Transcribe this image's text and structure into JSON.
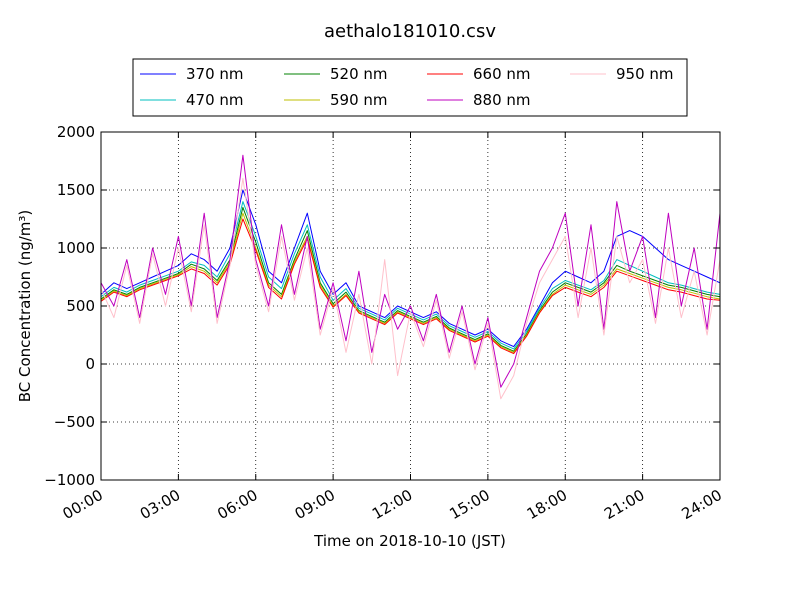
{
  "chart_data": {
    "type": "line",
    "title": "aethalo181010.csv",
    "xlabel": "Time on 2018-10-10 (JST)",
    "ylabel": "BC Concentration (ng/m³)",
    "x_unit": "hours",
    "xlim": [
      0,
      24
    ],
    "ylim": [
      -1000,
      2000
    ],
    "xticks": [
      0,
      3,
      6,
      9,
      12,
      15,
      18,
      21,
      24
    ],
    "xtick_labels": [
      "00:00",
      "03:00",
      "06:00",
      "09:00",
      "12:00",
      "15:00",
      "18:00",
      "21:00",
      "24:00"
    ],
    "yticks": [
      -1000,
      -500,
      0,
      500,
      1000,
      1500,
      2000
    ],
    "ytick_labels": [
      "−1000",
      "−500",
      "0",
      "500",
      "1000",
      "1500",
      "2000"
    ],
    "grid": true,
    "legend_position": "top",
    "legend_columns": 4,
    "x": [
      0,
      0.5,
      1,
      1.5,
      2,
      2.5,
      3,
      3.5,
      4,
      4.5,
      5,
      5.5,
      6,
      6.5,
      7,
      7.5,
      8,
      8.5,
      9,
      9.5,
      10,
      10.5,
      11,
      11.5,
      12,
      12.5,
      13,
      13.5,
      14,
      14.5,
      15,
      15.5,
      16,
      16.5,
      17,
      17.5,
      18,
      18.5,
      19,
      19.5,
      20,
      20.5,
      21,
      21.5,
      22,
      22.5,
      23,
      23.5,
      24
    ],
    "series": [
      {
        "name": "370 nm",
        "color": "#0000ff",
        "values": [
          600,
          700,
          650,
          700,
          750,
          800,
          850,
          950,
          900,
          800,
          1000,
          1500,
          1200,
          800,
          700,
          1000,
          1300,
          800,
          600,
          700,
          500,
          450,
          400,
          500,
          450,
          400,
          450,
          350,
          300,
          250,
          300,
          200,
          150,
          300,
          500,
          700,
          800,
          750,
          700,
          800,
          1100,
          1150,
          1100,
          1000,
          900,
          850,
          800,
          750,
          700
        ]
      },
      {
        "name": "470 nm",
        "color": "#00bfbf",
        "values": [
          580,
          660,
          620,
          680,
          720,
          760,
          800,
          880,
          850,
          750,
          950,
          1400,
          1100,
          750,
          650,
          950,
          1200,
          750,
          550,
          650,
          480,
          430,
          380,
          480,
          430,
          380,
          430,
          330,
          280,
          230,
          280,
          180,
          130,
          280,
          480,
          650,
          720,
          680,
          640,
          720,
          900,
          850,
          800,
          750,
          700,
          680,
          650,
          620,
          600
        ]
      },
      {
        "name": "520 nm",
        "color": "#008000",
        "values": [
          560,
          640,
          600,
          660,
          700,
          740,
          780,
          860,
          820,
          720,
          900,
          1350,
          1050,
          700,
          600,
          900,
          1150,
          700,
          520,
          620,
          460,
          410,
          360,
          460,
          410,
          360,
          410,
          310,
          260,
          210,
          260,
          160,
          110,
          260,
          460,
          620,
          700,
          660,
          620,
          700,
          850,
          800,
          760,
          720,
          680,
          660,
          630,
          600,
          580
        ]
      },
      {
        "name": "590 nm",
        "color": "#bfbf00",
        "values": [
          550,
          630,
          590,
          650,
          690,
          730,
          770,
          840,
          800,
          700,
          880,
          1300,
          1000,
          680,
          580,
          880,
          1100,
          680,
          500,
          600,
          450,
          400,
          350,
          450,
          400,
          350,
          400,
          300,
          250,
          200,
          250,
          150,
          100,
          250,
          450,
          600,
          680,
          640,
          600,
          680,
          820,
          780,
          740,
          700,
          660,
          640,
          610,
          580,
          560
        ]
      },
      {
        "name": "660 nm",
        "color": "#ff0000",
        "values": [
          540,
          620,
          580,
          640,
          680,
          720,
          760,
          820,
          780,
          680,
          860,
          1250,
          980,
          660,
          560,
          860,
          1080,
          660,
          490,
          590,
          440,
          390,
          340,
          440,
          390,
          340,
          390,
          290,
          240,
          190,
          240,
          140,
          90,
          240,
          440,
          590,
          660,
          620,
          580,
          660,
          800,
          760,
          720,
          680,
          640,
          620,
          590,
          560,
          550
        ]
      },
      {
        "name": "880 nm",
        "color": "#bf00bf",
        "values": [
          700,
          500,
          900,
          400,
          1000,
          600,
          1100,
          500,
          1300,
          400,
          900,
          1800,
          900,
          500,
          1200,
          600,
          1100,
          300,
          700,
          200,
          800,
          100,
          600,
          300,
          500,
          200,
          600,
          100,
          500,
          0,
          400,
          -200,
          0,
          400,
          800,
          1000,
          1300,
          500,
          1200,
          300,
          1400,
          800,
          1100,
          400,
          1300,
          500,
          1000,
          300,
          1300
        ]
      },
      {
        "name": "950 nm",
        "color": "#ffc0cb",
        "values": [
          650,
          400,
          850,
          350,
          950,
          500,
          1000,
          450,
          1200,
          350,
          850,
          1600,
          850,
          450,
          1100,
          550,
          1000,
          250,
          650,
          100,
          600,
          0,
          900,
          -100,
          450,
          150,
          550,
          50,
          450,
          -50,
          350,
          -300,
          -100,
          350,
          700,
          900,
          1100,
          400,
          1000,
          250,
          1100,
          700,
          900,
          350,
          1000,
          400,
          800,
          250,
          900
        ]
      }
    ]
  }
}
